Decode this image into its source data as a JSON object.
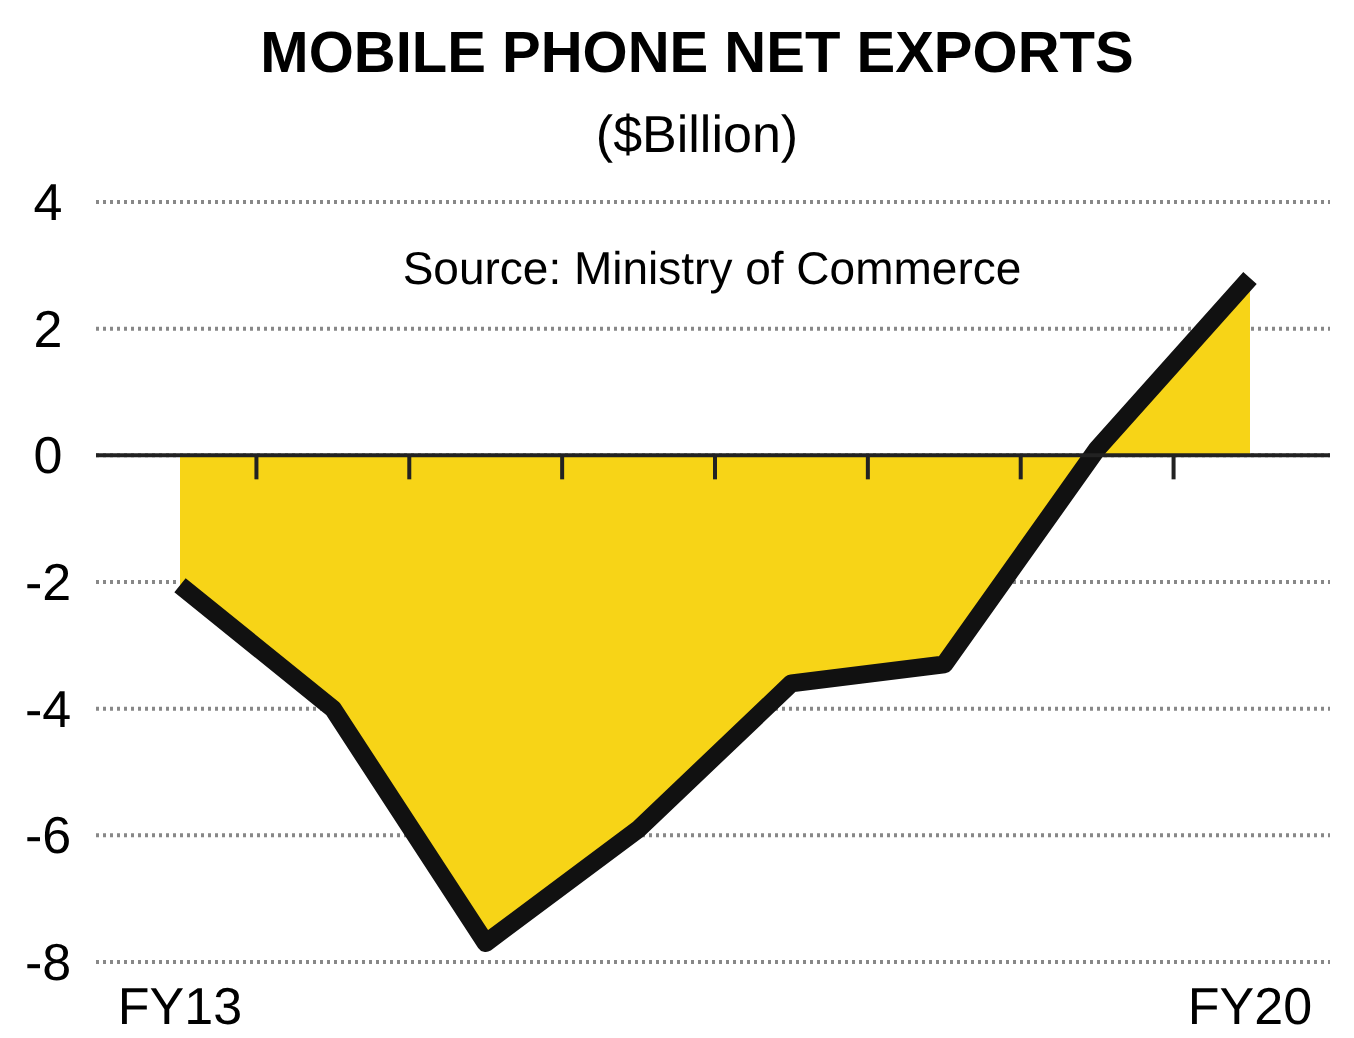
{
  "chart_data": {
    "type": "area",
    "title": "MOBILE PHONE NET EXPORTS",
    "subtitle": "($Billion)",
    "annotations": [
      "Source: Ministry of Commerce"
    ],
    "categories": [
      "FY13",
      null,
      null,
      null,
      null,
      null,
      null,
      "FY20"
    ],
    "series": [
      {
        "color": "#f7d417",
        "values": [
          -2.05,
          -4.0,
          -7.7,
          -5.9,
          -3.6,
          -3.3,
          0.1,
          2.8
        ]
      }
    ],
    "ylim": [
      -8,
      4
    ],
    "yticks": [
      -8,
      -6,
      -4,
      -2,
      0,
      2,
      4
    ],
    "grid": "y",
    "line_style": "solid"
  }
}
